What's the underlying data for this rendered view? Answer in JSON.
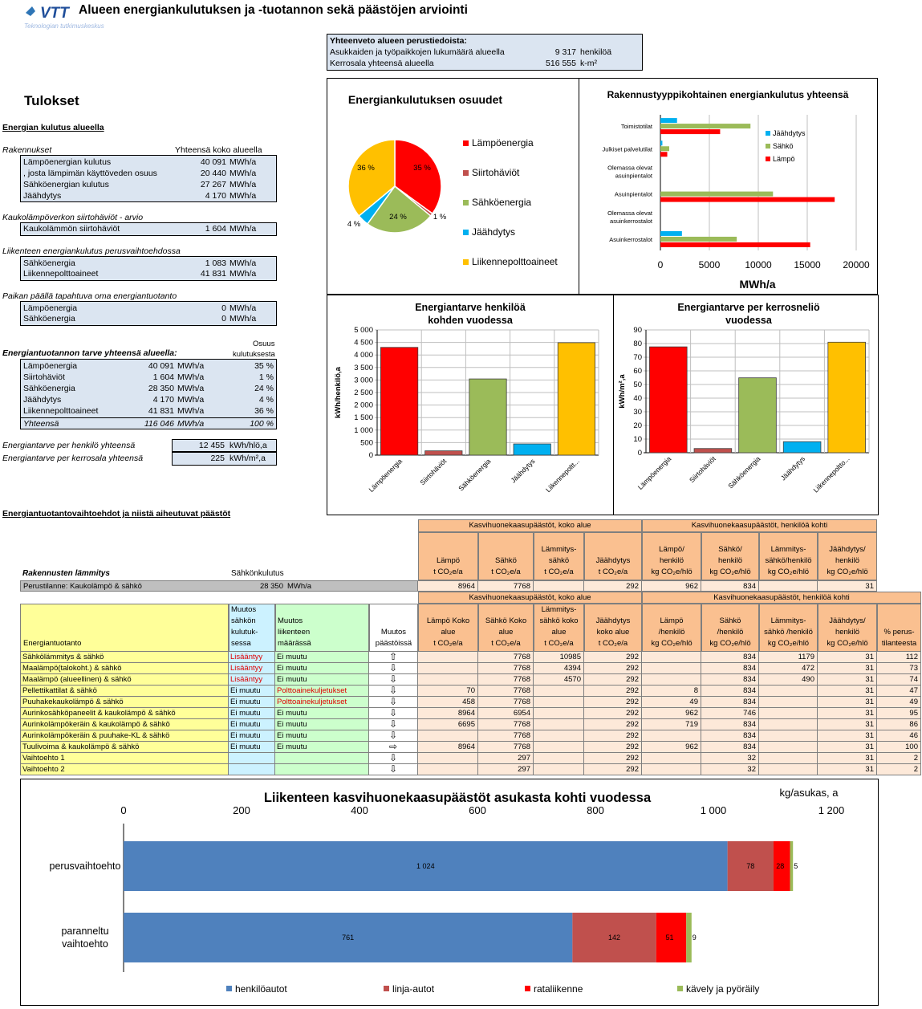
{
  "header": {
    "logo_text": "VTT",
    "logo_sub": "Teknologian tutkimuskeskus",
    "title": "Alueen energiankulutuksen ja -tuotannon sekä päästöjen arviointi"
  },
  "summary": {
    "title": "Yhteenveto alueen perustiedoista:",
    "rows": [
      {
        "label": "Asukkaiden ja työpaikkojen lukumäärä alueella",
        "value": "9 317",
        "unit": "henkilöä"
      },
      {
        "label": "Kerrosala yhteensä alueella",
        "value": "516 555",
        "unit": "k-m²"
      }
    ]
  },
  "results": {
    "heading": "Tulokset",
    "section1": "Energian kulutus alueella",
    "rakennukset_label": "Rakennukset",
    "rakennukset_col": "Yhteensä koko alueella",
    "rakennukset": [
      {
        "label": "Lämpöenergian kulutus",
        "value": "40 091",
        "unit": "MWh/a"
      },
      {
        "label": ", josta lämpimän käyttöveden osuus",
        "value": "20 440",
        "unit": "MWh/a"
      },
      {
        "label": "Sähköenergian kulutus",
        "value": "27 267",
        "unit": "MWh/a"
      },
      {
        "label": "Jäähdytys",
        "value": "4 170",
        "unit": "MWh/a"
      }
    ],
    "kaukolampo_label": "Kaukolämpöverkon siirtohäviöt - arvio",
    "kaukolampo": [
      {
        "label": "Kaukolämmön siirtohäviöt",
        "value": "1 604",
        "unit": "MWh/a"
      }
    ],
    "liikenne_label": "Liikenteen energiankulutus perusvaihtoehdossa",
    "liikenne": [
      {
        "label": "Sähköenergia",
        "value": "1 083",
        "unit": "MWh/a"
      },
      {
        "label": "Liikennepolttoaineet",
        "value": "41 831",
        "unit": "MWh/a"
      }
    ],
    "oma_label": "Paikan päällä tapahtuva oma energiantuotanto",
    "oma": [
      {
        "label": "Lämpöenergia",
        "value": "0",
        "unit": "MWh/a"
      },
      {
        "label": "Sähköenergia",
        "value": "0",
        "unit": "MWh/a"
      }
    ],
    "tarve_label": "Energiantuotannon tarve yhteensä alueella:",
    "osuus_label_1": "Osuus",
    "osuus_label_2": "kulutuksesta",
    "tarve": [
      {
        "label": "Lämpöenergia",
        "value": "40 091",
        "unit": "MWh/a",
        "share": "35 %"
      },
      {
        "label": "Siirtohäviöt",
        "value": "1 604",
        "unit": "MWh/a",
        "share": "1 %"
      },
      {
        "label": "Sähköenergia",
        "value": "28 350",
        "unit": "MWh/a",
        "share": "24 %"
      },
      {
        "label": "Jäähdytys",
        "value": "4 170",
        "unit": "MWh/a",
        "share": "4 %"
      },
      {
        "label": "Liikennepolttoaineet",
        "value": "41 831",
        "unit": "MWh/a",
        "share": "36 %"
      }
    ],
    "tarve_total": {
      "label": "Yhteensä",
      "value": "116 046",
      "unit": "MWh/a",
      "share": "100 %"
    },
    "per_henkilo": {
      "label": "Energiantarve per henkilö yhteensä",
      "value": "12 455",
      "unit": "kWh/hlö,a"
    },
    "per_kerrosala": {
      "label": "Energiantarve per kerrosala yhteensä",
      "value": "225",
      "unit": "kWh/m²,a"
    }
  },
  "chart_data": [
    {
      "type": "pie",
      "title": "Energiankulutuksen osuudet",
      "categories": [
        "Lämpöenergia",
        "Siirtohäviöt",
        "Sähköenergia",
        "Jäähdytys",
        "Liikennepolttoaineet"
      ],
      "values": [
        35,
        1,
        24,
        4,
        36
      ],
      "labels": [
        "35 %",
        "1 %",
        "24 %",
        "4 %",
        "36 %"
      ],
      "colors": [
        "#ff0000",
        "#c0504d",
        "#9bbb59",
        "#00b0f0",
        "#ffc000"
      ],
      "legend": "right"
    },
    {
      "type": "bar",
      "orientation": "horizontal",
      "title": "Rakennustyyppikohtainen energiankulutus yhteensä",
      "categories": [
        "Toimistotilat",
        "Julkiset palvelutilat",
        "Olemassa olevat asuinpientalot",
        "Asuinpientalot",
        "Olemassa olevat asuinkerrostalot",
        "Asuinkerrostalot"
      ],
      "series": [
        {
          "name": "Jäähdytys",
          "color": "#00b0f0",
          "values": [
            1700,
            200,
            0,
            0,
            0,
            2200
          ]
        },
        {
          "name": "Sähkö",
          "color": "#9bbb59",
          "values": [
            9200,
            900,
            0,
            11500,
            0,
            7800
          ]
        },
        {
          "name": "Lämpö",
          "color": "#ff0000",
          "values": [
            6100,
            700,
            0,
            17800,
            0,
            15300
          ]
        }
      ],
      "xlabel": "MWh/a",
      "xlim": [
        0,
        20000
      ],
      "xticks": [
        "0",
        "5000",
        "10000",
        "15000",
        "20000"
      ],
      "legend": "right"
    },
    {
      "type": "bar",
      "title": "Energiantarve henkilöä kohden vuodessa",
      "categories": [
        "Lämpöenergia",
        "Siirtohäviöt",
        "Sähköenergia",
        "Jäähdytys",
        "Liikennepolttoaineet"
      ],
      "tick_labels": [
        "Lämpöenergia",
        "Siirtohäviöt",
        "Sähköenergia",
        "Jäähdytys",
        "Liikennepoltt..."
      ],
      "values": [
        4303,
        172,
        3043,
        448,
        4490
      ],
      "colors": [
        "#ff0000",
        "#c0504d",
        "#9bbb59",
        "#00b0f0",
        "#ffc000"
      ],
      "ylabel": "kWh/henkilö,a",
      "ylim": [
        0,
        5000
      ],
      "yticks": [
        "0",
        "500",
        "1 000",
        "1 500",
        "2 000",
        "2 500",
        "3 000",
        "3 500",
        "4 000",
        "4 500",
        "5 000"
      ]
    },
    {
      "type": "bar",
      "title": "Energiantarve per kerrosneliö vuodessa",
      "categories": [
        "Lämpöenergia",
        "Siirtohäviöt",
        "Sähköenergia",
        "Jäähdytys",
        "Liikennepolttoaineet"
      ],
      "tick_labels": [
        "Lämpöenergia",
        "Siirtohäviöt",
        "Sähköenergia",
        "Jäähdytys",
        "Liikennepoltto..."
      ],
      "values": [
        77.6,
        3.1,
        54.9,
        8.1,
        81.0
      ],
      "colors": [
        "#ff0000",
        "#c0504d",
        "#9bbb59",
        "#00b0f0",
        "#ffc000"
      ],
      "ylabel": "kWh/m²,a",
      "ylim": [
        0,
        90
      ],
      "yticks": [
        "0",
        "10",
        "20",
        "30",
        "40",
        "50",
        "60",
        "70",
        "80",
        "90"
      ]
    },
    {
      "type": "bar",
      "orientation": "horizontal",
      "stacked": true,
      "title": "Liikenteen kasvihuonekaasupäästöt asukasta kohti vuodessa",
      "unit_label": "kg/asukas, a",
      "categories": [
        "perusvaihtoehto",
        "parannellu vaihtoehto"
      ],
      "series": [
        {
          "name": "henkilöautot",
          "color": "#4f81bd",
          "values": [
            1024,
            761
          ],
          "labels": [
            "1 024",
            "761"
          ]
        },
        {
          "name": "linja-autot",
          "color": "#c0504d",
          "values": [
            78,
            142
          ],
          "labels": [
            "78",
            "142"
          ]
        },
        {
          "name": "rataliikenne",
          "color": "#ff0000",
          "values": [
            28,
            51
          ],
          "labels": [
            "28",
            "51"
          ]
        },
        {
          "name": "kävely ja pyöräily",
          "color": "#9bbb59",
          "values": [
            5,
            9
          ],
          "labels": [
            "5",
            "9"
          ]
        }
      ],
      "xlim": [
        0,
        1200
      ],
      "xticks": [
        "0",
        "200",
        "400",
        "600",
        "800",
        "1 000",
        "1 200"
      ],
      "legend": "bottom"
    }
  ],
  "alternatives": {
    "heading": "Energiantuotantovaihtoehdot ja niistä aiheutuvat päästöt",
    "top_group1": "Kasvihuonekaasupäästöt, koko alue",
    "top_group2": "Kasvihuonekaasupäästöt, henkilöä kohti",
    "top_cols": [
      "Lämpö\nt CO₂e/a",
      "Sähkö\nt CO₂e/a",
      "Lämmitys-\nsähkö\nt CO₂e/a",
      "Jäähdytys\nt CO₂e/a",
      "Lämpö/\nhenkilö\nkg CO₂e/hlö",
      "Sähkö/\nhenkilö\nkg CO₂e/hlö",
      "Lämmitys-\nsähkö/henkilö\nkg CO₂e/hlö",
      "Jäähdytys/\nhenkilö\nkg CO₂e/hlö"
    ],
    "heating_label": "Rakennusten lämmitys",
    "electricity_label": "Sähkönkulutus",
    "baseline": {
      "label": "Perustilanne: Kaukolämpö & sähkö",
      "value": "28 350",
      "unit": "MWh/a",
      "cells": [
        "8964",
        "7768",
        "",
        "292",
        "962",
        "834",
        "",
        "31"
      ]
    },
    "bottom_group1": "Kasvihuonekaasupäästöt, koko alue",
    "bottom_group2": "Kasvihuonekaasupäästöt, henkilöä kohti",
    "col_energy": "Energiantuotanto",
    "col_muutos_sahko": "Muutos\nsähkön\nkulutuk-\nsessa",
    "col_muutos_liikenne": "Muutos\nliikenteen\nmäärässä",
    "col_muutos_paastot": "Muutos\npäästöissä",
    "bottom_cols": [
      "Lämpö Koko\nalue\nt CO₂e/a",
      "Sähkö Koko\nalue\nt CO₂e/a",
      "Lämmitys-\nsähkö koko\nalue\nt CO₂e/a",
      "Jäähdytys\nkoko alue\nt CO₂e/a",
      "Lämpö\n/henkilö\nkg CO₂e/hlö",
      "Sähkö\n/henkilö\nkg CO₂e/hlö",
      "Lämmitys-\nsähkö /henkilö\nkg CO₂e/hlö",
      "Jäähdytys/\nhenkilö\nkg CO₂e/hlö",
      "% perus-\ntilanteesta"
    ],
    "rows": [
      {
        "name": "Sähkölämmitys & sähkö",
        "m1": "Lisääntyy",
        "m1red": true,
        "m2": "Ei muutu",
        "m2red": false,
        "arrow": "up",
        "v": [
          "",
          "7768",
          "10985",
          "292",
          "",
          "834",
          "1179",
          "31",
          "112"
        ]
      },
      {
        "name": "Maalämpö(talokoht.) & sähkö",
        "m1": "Lisääntyy",
        "m1red": true,
        "m2": "Ei muutu",
        "m2red": false,
        "arrow": "down",
        "v": [
          "",
          "7768",
          "4394",
          "292",
          "",
          "834",
          "472",
          "31",
          "73"
        ]
      },
      {
        "name": "Maalämpö (alueellinen) & sähkö",
        "m1": "Lisääntyy",
        "m1red": true,
        "m2": "Ei muutu",
        "m2red": false,
        "arrow": "down",
        "v": [
          "",
          "7768",
          "4570",
          "292",
          "",
          "834",
          "490",
          "31",
          "74"
        ]
      },
      {
        "name": "Pellettikattilat & sähkö",
        "m1": "Ei muutu",
        "m1red": false,
        "m2": "Polttoainekuljetukset",
        "m2red": true,
        "arrow": "down",
        "v": [
          "70",
          "7768",
          "",
          "292",
          "8",
          "834",
          "",
          "31",
          "47"
        ]
      },
      {
        "name": "Puuhakekaukolämpö & sähkö",
        "m1": "Ei muutu",
        "m1red": false,
        "m2": "Polttoainekuljetukset",
        "m2red": true,
        "arrow": "down",
        "v": [
          "458",
          "7768",
          "",
          "292",
          "49",
          "834",
          "",
          "31",
          "49"
        ]
      },
      {
        "name": "Aurinkosähköpaneelit & kaukolämpö & sähkö",
        "m1": "Ei muutu",
        "m1red": false,
        "m2": "Ei muutu",
        "m2red": false,
        "arrow": "down",
        "v": [
          "8964",
          "6954",
          "",
          "292",
          "962",
          "746",
          "",
          "31",
          "95"
        ]
      },
      {
        "name": "Aurinkolämpökeräin & kaukolämpö & sähkö",
        "m1": "Ei muutu",
        "m1red": false,
        "m2": "Ei muutu",
        "m2red": false,
        "arrow": "down",
        "v": [
          "6695",
          "7768",
          "",
          "292",
          "719",
          "834",
          "",
          "31",
          "86"
        ]
      },
      {
        "name": "Aurinkolämpökeräin & puuhake-KL & sähkö",
        "m1": "Ei muutu",
        "m1red": false,
        "m2": "Ei muutu",
        "m2red": false,
        "arrow": "down",
        "v": [
          "",
          "7768",
          "",
          "292",
          "",
          "834",
          "",
          "31",
          "46"
        ]
      },
      {
        "name": "Tuulivoima & kaukolämpö & sähkö",
        "m1": "Ei muutu",
        "m1red": false,
        "m2": "Ei muutu",
        "m2red": false,
        "arrow": "right",
        "v": [
          "8964",
          "7768",
          "",
          "292",
          "962",
          "834",
          "",
          "31",
          "100"
        ]
      },
      {
        "name": "Vaihtoehto 1",
        "m1": "",
        "m1red": false,
        "m2": "",
        "m2red": false,
        "arrow": "down",
        "v": [
          "",
          "297",
          "",
          "292",
          "",
          "32",
          "",
          "31",
          "2"
        ]
      },
      {
        "name": "Vaihtoehto 2",
        "m1": "",
        "m1red": false,
        "m2": "",
        "m2red": false,
        "arrow": "down",
        "v": [
          "",
          "297",
          "",
          "292",
          "",
          "32",
          "",
          "31",
          "2"
        ]
      }
    ]
  }
}
